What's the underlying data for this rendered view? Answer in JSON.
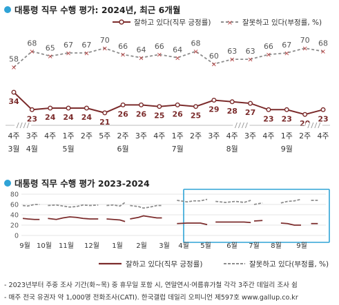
{
  "colors": {
    "approve": "#7b2b2b",
    "disapprove": "#8c8c8c",
    "accent": "#2fa3d6",
    "box": "#2fa3d6"
  },
  "chart_data": [
    {
      "type": "line",
      "title": "대통령 직무 수행 평가: 2024년, 최근 6개월",
      "legend_position": "top-right",
      "x_labels": [
        [
          "4주",
          "3월"
        ],
        [
          "3주",
          "4월"
        ],
        [
          "4주",
          ""
        ],
        [
          "1주",
          "5월"
        ],
        [
          "2주",
          ""
        ],
        [
          "5주",
          ""
        ],
        [
          "2주",
          "6월"
        ],
        [
          "3주",
          ""
        ],
        [
          "4주",
          ""
        ],
        [
          "1주",
          "7월"
        ],
        [
          "2주",
          ""
        ],
        [
          "3주",
          ""
        ],
        [
          "4주",
          "8월"
        ],
        [
          "3주",
          ""
        ],
        [
          "4주",
          ""
        ],
        [
          "1주",
          "9월"
        ],
        [
          "2주",
          ""
        ],
        [
          "4주",
          ""
        ]
      ],
      "series": [
        {
          "name": "잘하고 있다(직무 긍정률)",
          "values": [
            34,
            23,
            24,
            24,
            24,
            21,
            26,
            26,
            25,
            26,
            25,
            29,
            28,
            27,
            23,
            23,
            20,
            23
          ]
        },
        {
          "name": "잘못하고 있다(부정률, %)",
          "values": [
            58,
            68,
            65,
            67,
            67,
            70,
            66,
            64,
            66,
            64,
            68,
            60,
            63,
            63,
            66,
            67,
            70,
            68
          ]
        }
      ]
    },
    {
      "type": "line",
      "title": "대통령 직무 수행 평가 2023-2024",
      "ylim": [
        0,
        80
      ],
      "yticks": [
        0,
        20,
        40,
        60,
        80
      ],
      "month_labels": [
        "9월",
        "10월",
        "11월",
        "12월",
        "1월",
        "2월",
        "3월",
        "4월",
        "5월",
        "6월",
        "7월",
        "8월",
        "9월"
      ],
      "legend_position": "bottom",
      "series": [
        {
          "name": "잘하고 있다(직무 긍정률)",
          "segments": [
            [
              [
                0.0,
                33
              ],
              [
                0.3,
                32
              ],
              [
                0.7,
                31
              ],
              [
                1.0,
                31
              ]
            ],
            [
              [
                1.5,
                33
              ],
              [
                2.0,
                31
              ],
              [
                2.4,
                34
              ],
              [
                2.8,
                36
              ],
              [
                3.2,
                35
              ],
              [
                3.6,
                33
              ],
              [
                4.0,
                32
              ],
              [
                4.5,
                32
              ]
            ],
            [
              [
                5.0,
                32
              ],
              [
                5.4,
                31
              ],
              [
                5.8,
                30
              ],
              [
                6.1,
                27
              ]
            ],
            [
              [
                6.4,
                32
              ],
              [
                6.9,
                35
              ],
              [
                7.2,
                38
              ],
              [
                7.6,
                36
              ],
              [
                8.0,
                34
              ],
              [
                8.3,
                34
              ]
            ],
            [
              [
                9.2,
                23
              ],
              [
                9.8,
                24
              ],
              [
                10.2,
                24
              ],
              [
                10.6,
                24
              ],
              [
                11.0,
                21
              ]
            ],
            [
              [
                11.5,
                26
              ],
              [
                12.1,
                26
              ],
              [
                12.7,
                26
              ],
              [
                13.2,
                26
              ],
              [
                13.6,
                25
              ]
            ],
            [
              [
                13.8,
                28
              ],
              [
                14.3,
                29
              ]
            ],
            [
              [
                15.4,
                24
              ],
              [
                15.8,
                23
              ],
              [
                16.2,
                20
              ],
              [
                16.6,
                20
              ]
            ],
            [
              [
                17.2,
                23
              ],
              [
                17.6,
                23
              ]
            ]
          ]
        },
        {
          "name": "잘못하고 있다(부정률, %)",
          "segments": [
            [
              [
                0.0,
                58
              ],
              [
                0.3,
                57
              ],
              [
                0.7,
                60
              ],
              [
                1.0,
                60
              ]
            ],
            [
              [
                1.5,
                58
              ],
              [
                2.0,
                59
              ],
              [
                2.4,
                57
              ],
              [
                2.8,
                55
              ],
              [
                3.2,
                56
              ],
              [
                3.6,
                59
              ],
              [
                4.0,
                58
              ],
              [
                4.5,
                59
              ]
            ],
            [
              [
                5.0,
                58
              ],
              [
                5.4,
                59
              ],
              [
                5.8,
                57
              ],
              [
                6.1,
                64
              ]
            ],
            [
              [
                6.4,
                58
              ],
              [
                6.9,
                56
              ],
              [
                7.2,
                53
              ],
              [
                7.6,
                55
              ],
              [
                8.0,
                58
              ],
              [
                8.3,
                58
              ]
            ],
            [
              [
                9.2,
                68
              ],
              [
                9.8,
                65
              ],
              [
                10.2,
                67
              ],
              [
                10.6,
                67
              ],
              [
                11.0,
                70
              ]
            ],
            [
              [
                11.5,
                66
              ],
              [
                12.1,
                64
              ],
              [
                12.7,
                66
              ],
              [
                13.2,
                64
              ],
              [
                13.6,
                68
              ]
            ],
            [
              [
                13.8,
                60
              ],
              [
                14.3,
                63
              ]
            ],
            [
              [
                15.4,
                63
              ],
              [
                15.8,
                66
              ],
              [
                16.2,
                67
              ],
              [
                16.6,
                70
              ]
            ],
            [
              [
                17.2,
                68
              ],
              [
                17.6,
                68
              ]
            ]
          ]
        }
      ]
    }
  ],
  "footnotes": [
    "- 2023년부터 주중 조사 기간(화~목) 중 휴무일 포함 시, 연말연시·여름휴가철 각각 3주간 데일리 조사 쉼",
    "- 매주 전국 유권자 약 1,000명 전화조사(CATI). 한국갤럽 데일리 오피니언 제597호 www.gallup.co.kr"
  ]
}
